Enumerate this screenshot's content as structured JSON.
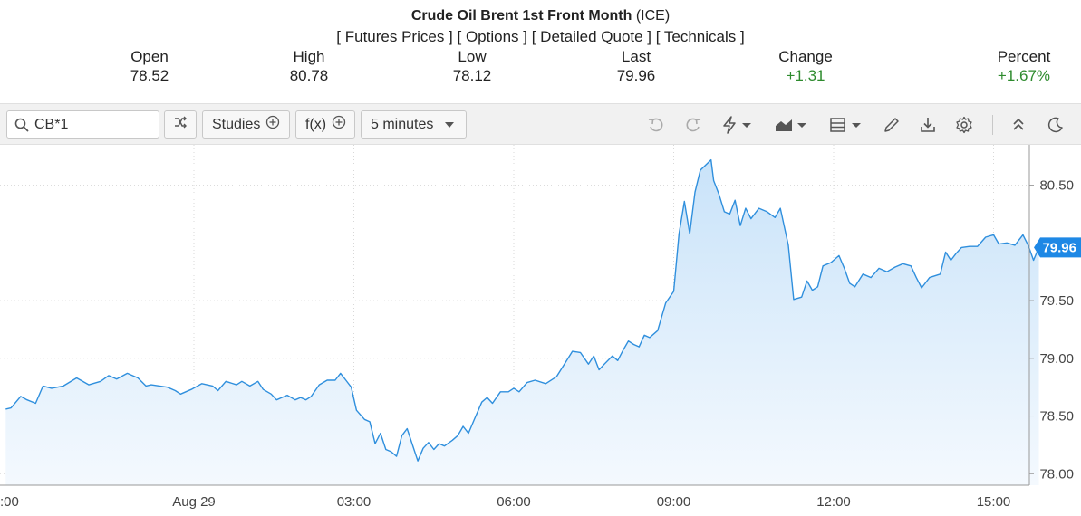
{
  "quote": {
    "title": "Crude Oil Brent 1st Front Month",
    "exchange": "(ICE)",
    "links": [
      "Futures Prices",
      "Options",
      "Detailed Quote",
      "Technicals"
    ],
    "stats": [
      {
        "label": "Open",
        "value": "78.52",
        "trend": "neutral"
      },
      {
        "label": "High",
        "value": "80.78",
        "trend": "neutral"
      },
      {
        "label": "Low",
        "value": "78.12",
        "trend": "neutral"
      },
      {
        "label": "Last",
        "value": "79.96",
        "trend": "neutral"
      },
      {
        "label": "Change",
        "value": "+1.31",
        "trend": "up"
      },
      {
        "label": "Percent",
        "value": "+1.67%",
        "trend": "up"
      }
    ]
  },
  "toolbar": {
    "symbol_value": "CB*1",
    "studies_label": "Studies",
    "fx_label": "f(x)",
    "interval_label": "5 minutes",
    "icons": [
      "search-icon",
      "shuffle-icon",
      "plus-circle-icon",
      "caret-down-icon",
      "undo-icon",
      "redo-icon",
      "lightning-icon",
      "area-chart-icon",
      "layout-icon",
      "pencil-icon",
      "download-icon",
      "gear-icon",
      "collapse-icon",
      "moon-icon"
    ]
  },
  "colors": {
    "line": "#2f8fdd",
    "fill_top": "#c9e3f9",
    "fill_bottom": "#f4f9fe",
    "up": "#2e8b2e",
    "last_tag": "#1e88e5"
  },
  "chart_data": {
    "type": "area",
    "symbol": "CB*1",
    "interval": "5 minutes",
    "ylim": [
      77.9,
      80.85
    ],
    "yticks": [
      78.0,
      78.5,
      79.0,
      79.5,
      80.5
    ],
    "ytick_labels": [
      "78.00",
      "78.50",
      "79.00",
      "79.50",
      "80.50"
    ],
    "xticks": [
      {
        "label": ":00",
        "hours": -8
      },
      {
        "label": "Aug 29",
        "hours": 0
      },
      {
        "label": "03:00",
        "hours": 3
      },
      {
        "label": "06:00",
        "hours": 6
      },
      {
        "label": "09:00",
        "hours": 9
      },
      {
        "label": "12:00",
        "hours": 12
      },
      {
        "label": "15:00",
        "hours": 15
      }
    ],
    "last_value": "79.96",
    "grid": true,
    "series": [
      {
        "name": "CB*1",
        "points": [
          [
            -3.53,
            78.56
          ],
          [
            -3.43,
            78.57
          ],
          [
            -3.25,
            78.67
          ],
          [
            -3.13,
            78.64
          ],
          [
            -2.97,
            78.61
          ],
          [
            -2.83,
            78.76
          ],
          [
            -2.67,
            78.74
          ],
          [
            -2.45,
            78.76
          ],
          [
            -2.2,
            78.83
          ],
          [
            -1.97,
            78.77
          ],
          [
            -1.75,
            78.8
          ],
          [
            -1.6,
            78.85
          ],
          [
            -1.45,
            78.82
          ],
          [
            -1.25,
            78.87
          ],
          [
            -1.05,
            78.83
          ],
          [
            -0.9,
            78.76
          ],
          [
            -0.8,
            78.77
          ],
          [
            -0.5,
            78.75
          ],
          [
            -0.35,
            78.72
          ],
          [
            -0.25,
            78.69
          ],
          [
            -0.05,
            78.73
          ],
          [
            0.15,
            78.78
          ],
          [
            0.35,
            78.76
          ],
          [
            0.45,
            78.72
          ],
          [
            0.6,
            78.8
          ],
          [
            0.8,
            78.77
          ],
          [
            0.9,
            78.8
          ],
          [
            1.05,
            78.76
          ],
          [
            1.2,
            78.8
          ],
          [
            1.3,
            78.73
          ],
          [
            1.45,
            78.69
          ],
          [
            1.55,
            78.64
          ],
          [
            1.65,
            78.66
          ],
          [
            1.75,
            78.68
          ],
          [
            1.9,
            78.64
          ],
          [
            2.0,
            78.66
          ],
          [
            2.1,
            78.64
          ],
          [
            2.2,
            78.67
          ],
          [
            2.35,
            78.77
          ],
          [
            2.5,
            78.81
          ],
          [
            2.65,
            78.81
          ],
          [
            2.75,
            78.87
          ],
          [
            2.85,
            78.81
          ],
          [
            2.95,
            78.75
          ],
          [
            3.05,
            78.55
          ],
          [
            3.2,
            78.47
          ],
          [
            3.3,
            78.45
          ],
          [
            3.4,
            78.26
          ],
          [
            3.5,
            78.35
          ],
          [
            3.6,
            78.21
          ],
          [
            3.7,
            78.19
          ],
          [
            3.8,
            78.15
          ],
          [
            3.9,
            78.33
          ],
          [
            4.0,
            78.39
          ],
          [
            4.1,
            78.25
          ],
          [
            4.2,
            78.11
          ],
          [
            4.3,
            78.22
          ],
          [
            4.4,
            78.27
          ],
          [
            4.5,
            78.21
          ],
          [
            4.6,
            78.26
          ],
          [
            4.7,
            78.24
          ],
          [
            4.85,
            78.29
          ],
          [
            4.95,
            78.33
          ],
          [
            5.05,
            78.41
          ],
          [
            5.15,
            78.35
          ],
          [
            5.25,
            78.46
          ],
          [
            5.4,
            78.62
          ],
          [
            5.5,
            78.66
          ],
          [
            5.6,
            78.61
          ],
          [
            5.75,
            78.71
          ],
          [
            5.9,
            78.71
          ],
          [
            6.0,
            78.74
          ],
          [
            6.1,
            78.71
          ],
          [
            6.25,
            78.79
          ],
          [
            6.4,
            78.81
          ],
          [
            6.6,
            78.78
          ],
          [
            6.8,
            78.84
          ],
          [
            6.95,
            78.95
          ],
          [
            7.1,
            79.06
          ],
          [
            7.25,
            79.05
          ],
          [
            7.4,
            78.95
          ],
          [
            7.5,
            79.02
          ],
          [
            7.6,
            78.9
          ],
          [
            7.7,
            78.95
          ],
          [
            7.85,
            79.02
          ],
          [
            7.95,
            78.98
          ],
          [
            8.05,
            79.07
          ],
          [
            8.15,
            79.15
          ],
          [
            8.25,
            79.12
          ],
          [
            8.35,
            79.1
          ],
          [
            8.45,
            79.2
          ],
          [
            8.55,
            79.18
          ],
          [
            8.7,
            79.24
          ],
          [
            8.85,
            79.48
          ],
          [
            9.0,
            79.58
          ],
          [
            9.1,
            80.08
          ],
          [
            9.2,
            80.36
          ],
          [
            9.3,
            80.08
          ],
          [
            9.4,
            80.44
          ],
          [
            9.5,
            80.63
          ],
          [
            9.7,
            80.72
          ],
          [
            9.75,
            80.54
          ],
          [
            9.85,
            80.42
          ],
          [
            9.95,
            80.27
          ],
          [
            10.05,
            80.25
          ],
          [
            10.15,
            80.37
          ],
          [
            10.25,
            80.15
          ],
          [
            10.35,
            80.3
          ],
          [
            10.45,
            80.21
          ],
          [
            10.6,
            80.3
          ],
          [
            10.75,
            80.27
          ],
          [
            10.9,
            80.22
          ],
          [
            11.0,
            80.3
          ],
          [
            11.15,
            79.98
          ],
          [
            11.25,
            79.51
          ],
          [
            11.4,
            79.53
          ],
          [
            11.5,
            79.67
          ],
          [
            11.6,
            79.59
          ],
          [
            11.7,
            79.62
          ],
          [
            11.8,
            79.8
          ],
          [
            11.95,
            79.83
          ],
          [
            12.1,
            79.89
          ],
          [
            12.2,
            79.78
          ],
          [
            12.3,
            79.65
          ],
          [
            12.4,
            79.62
          ],
          [
            12.55,
            79.73
          ],
          [
            12.7,
            79.7
          ],
          [
            12.85,
            79.78
          ],
          [
            13.0,
            79.75
          ],
          [
            13.15,
            79.79
          ],
          [
            13.3,
            79.82
          ],
          [
            13.45,
            79.8
          ],
          [
            13.55,
            79.7
          ],
          [
            13.65,
            79.61
          ],
          [
            13.8,
            79.7
          ],
          [
            14.0,
            79.73
          ],
          [
            14.1,
            79.92
          ],
          [
            14.2,
            79.85
          ],
          [
            14.3,
            79.91
          ],
          [
            14.4,
            79.96
          ],
          [
            14.55,
            79.97
          ],
          [
            14.7,
            79.97
          ],
          [
            14.85,
            80.05
          ],
          [
            15.0,
            80.07
          ],
          [
            15.1,
            79.99
          ],
          [
            15.25,
            80.0
          ],
          [
            15.4,
            79.98
          ],
          [
            15.55,
            80.07
          ],
          [
            15.65,
            79.98
          ],
          [
            15.75,
            79.85
          ],
          [
            15.85,
            79.96
          ]
        ]
      }
    ]
  }
}
